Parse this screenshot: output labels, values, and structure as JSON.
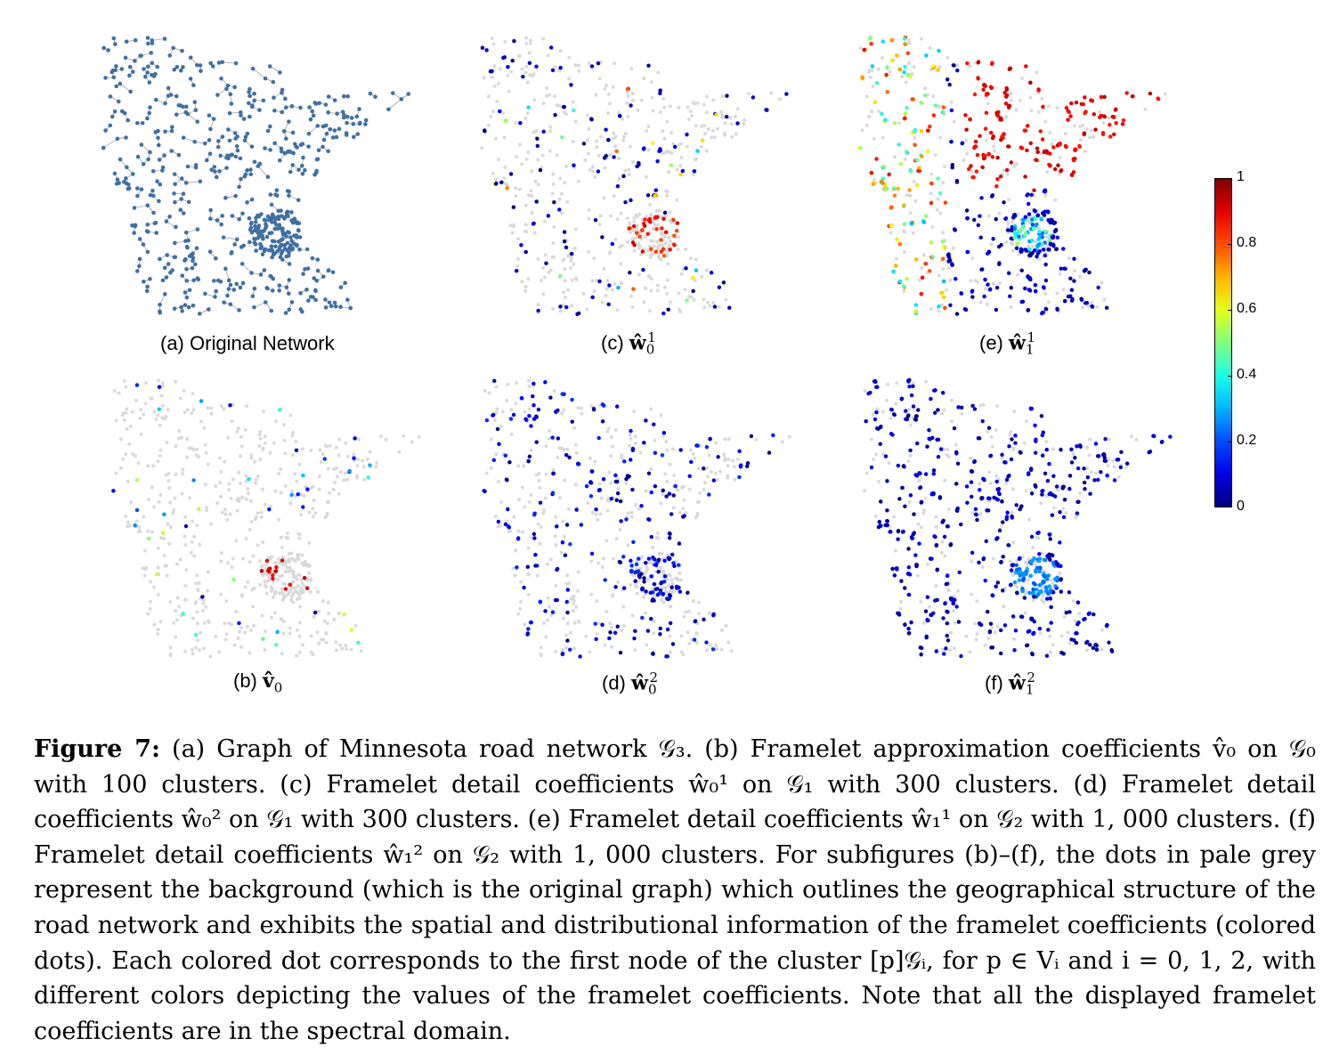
{
  "panels": [
    {
      "id": "a",
      "prefix": "(a) Original Network",
      "sym": "",
      "sub": "",
      "sup": "",
      "mode": "network"
    },
    {
      "id": "c",
      "prefix": "(c) ",
      "sym": "ŵ",
      "sub": "0",
      "sup": "1",
      "mode": "coef",
      "scheme": "c"
    },
    {
      "id": "e",
      "prefix": "(e) ",
      "sym": "ŵ",
      "sub": "1",
      "sup": "1",
      "mode": "coef",
      "scheme": "e"
    },
    {
      "id": "b",
      "prefix": "(b) ",
      "sym": "v̂",
      "sub": "0",
      "sup": "",
      "mode": "coef",
      "scheme": "b"
    },
    {
      "id": "d",
      "prefix": "(d) ",
      "sym": "ŵ",
      "sub": "0",
      "sup": "2",
      "mode": "coef",
      "scheme": "d"
    },
    {
      "id": "f",
      "prefix": "(f) ",
      "sym": "ŵ",
      "sub": "1",
      "sup": "2",
      "mode": "coef",
      "scheme": "f"
    }
  ],
  "colorbar": {
    "ticks": [
      "0",
      "0.2",
      "0.4",
      "0.6",
      "0.8",
      "1"
    ],
    "colormap": "jet",
    "range": [
      0,
      1
    ]
  },
  "colors": {
    "network_node": "#3f6fa3",
    "network_edge": "#888888",
    "background_dot": "#d9d9d9"
  },
  "caption": {
    "label": "Figure 7:",
    "text": "(a) Graph of Minnesota road network 𝒢₃. (b) Framelet approximation coefficients v̂₀ on 𝒢₀ with 100 clusters. (c) Framelet detail coefficients ŵ₀¹ on 𝒢₁ with 300 clusters. (d) Framelet detail coefficients ŵ₀² on 𝒢₁ with 300 clusters. (e) Framelet detail coefficients ŵ₁¹ on 𝒢₂ with 1, 000 clusters. (f) Framelet detail coefficients ŵ₁² on 𝒢₂ with 1, 000 clusters. For subfigures (b)–(f), the dots in pale grey represent the background (which is the original graph) which outlines the geographical structure of the road network and exhibits the spatial and distributional information of the framelet coefficients (colored dots). Each colored dot corresponds to the first node of the cluster [p]𝒢ᵢ, for p ∈ Vᵢ and i = 0, 1, 2, with different colors depicting the values of the framelet coefficients. Note that all the displayed framelet coefficients are in the spectral domain."
  }
}
